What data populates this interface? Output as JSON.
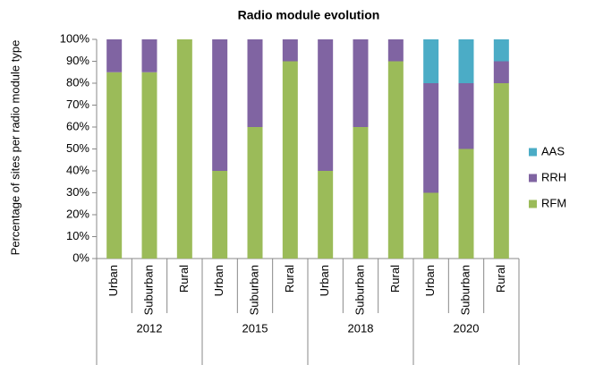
{
  "chart_data": {
    "type": "stacked_bar",
    "title": "Radio module evolution",
    "y_label": "Percentage of sites per radio module type",
    "categories": [
      "Urban",
      "Suburban",
      "Rural",
      "Urban",
      "Suburban",
      "Rural",
      "Urban",
      "Suburban",
      "Rural",
      "Urban",
      "Suburban",
      "Rural"
    ],
    "groups": [
      "2012",
      "2015",
      "2018",
      "2020"
    ],
    "series": [
      {
        "name": "RFM",
        "color": "#9bbb59",
        "values": [
          85,
          85,
          100,
          40,
          60,
          90,
          40,
          60,
          90,
          30,
          50,
          80
        ]
      },
      {
        "name": "RRH",
        "color": "#8064a2",
        "values": [
          15,
          15,
          0,
          60,
          40,
          10,
          60,
          40,
          10,
          50,
          30,
          10
        ]
      },
      {
        "name": "AAS",
        "color": "#4bacc6",
        "values": [
          0,
          0,
          0,
          0,
          0,
          0,
          0,
          0,
          0,
          20,
          20,
          10
        ]
      }
    ],
    "ylim": [
      0,
      100
    ],
    "yticks": [
      {
        "value": 0,
        "label": "0%"
      },
      {
        "value": 10,
        "label": "10%"
      },
      {
        "value": 20,
        "label": "20%"
      },
      {
        "value": 30,
        "label": "30%"
      },
      {
        "value": 40,
        "label": "40%"
      },
      {
        "value": 50,
        "label": "50%"
      },
      {
        "value": 60,
        "label": "60%"
      },
      {
        "value": 70,
        "label": "70%"
      },
      {
        "value": 80,
        "label": "80%"
      },
      {
        "value": 90,
        "label": "90%"
      },
      {
        "value": 100,
        "label": "100%"
      }
    ],
    "grid": false,
    "legend": "right"
  }
}
